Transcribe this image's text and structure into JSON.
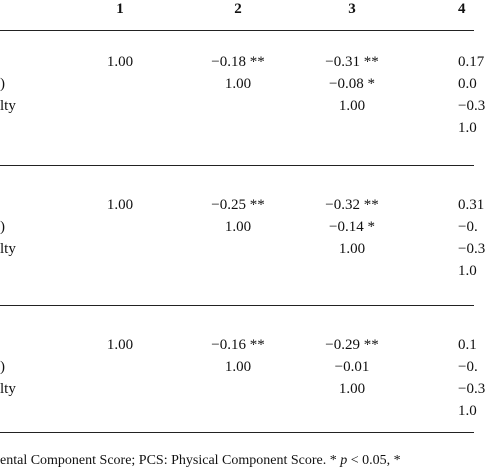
{
  "table": {
    "header": [
      "1",
      "2",
      "3",
      "4"
    ],
    "sections": [
      {
        "rows": [
          [
            null,
            "1.00",
            "−0.18 **",
            "−0.31 **",
            "0.17"
          ],
          [
            ")",
            null,
            "1.00",
            "−0.08 *",
            "0.0"
          ],
          [
            "lty",
            null,
            null,
            "1.00",
            "−0.3"
          ],
          [
            null,
            null,
            null,
            null,
            "1.0"
          ]
        ]
      },
      {
        "rows": [
          [
            null,
            "1.00",
            "−0.25 **",
            "−0.32 **",
            "0.31"
          ],
          [
            ")",
            null,
            "1.00",
            "−0.14 *",
            "−0."
          ],
          [
            "lty",
            null,
            null,
            "1.00",
            "−0.3"
          ],
          [
            null,
            null,
            null,
            null,
            "1.0"
          ]
        ]
      },
      {
        "rows": [
          [
            null,
            "1.00",
            "−0.16 **",
            "−0.29 **",
            "0.1"
          ],
          [
            ")",
            null,
            "1.00",
            "−0.01",
            "−0."
          ],
          [
            "lty",
            null,
            null,
            "1.00",
            "−0.3"
          ],
          [
            null,
            null,
            null,
            null,
            "1.0"
          ]
        ]
      }
    ],
    "footnote": [
      "ental Component Score; PCS: Physical Component Score. * ",
      "p",
      " < 0.05, *"
    ]
  }
}
